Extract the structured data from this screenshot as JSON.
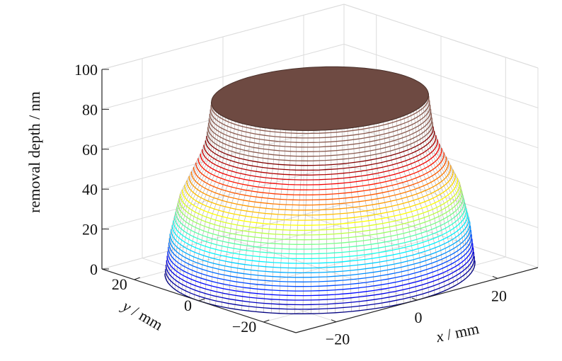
{
  "chart_data": {
    "type": "surface",
    "title": "",
    "xlabel": "x / mm",
    "ylabel": "y / mm",
    "zlabel": "removal depth / nm",
    "xlim": [
      -30,
      30
    ],
    "ylim": [
      -30,
      30
    ],
    "zlim": [
      0,
      100
    ],
    "x_ticks": [
      {
        "value": -20,
        "label": "−20"
      },
      {
        "value": 0,
        "label": "0"
      },
      {
        "value": 20,
        "label": "20"
      }
    ],
    "y_ticks": [
      {
        "value": 20,
        "label": "20"
      },
      {
        "value": 0,
        "label": "0"
      },
      {
        "value": -20,
        "label": "−20"
      }
    ],
    "z_ticks": [
      {
        "value": 0,
        "label": "0"
      },
      {
        "value": 20,
        "label": "20"
      },
      {
        "value": 40,
        "label": "40"
      },
      {
        "value": 60,
        "label": "60"
      },
      {
        "value": 80,
        "label": "80"
      },
      {
        "value": 100,
        "label": "100"
      }
    ],
    "grid": true,
    "colormap": "jet",
    "plateau_color": "#6e4a42",
    "surface": {
      "description_points": [
        {
          "depth": 0,
          "radius": 30
        },
        {
          "depth": 20,
          "radius": 29
        },
        {
          "depth": 40,
          "radius": 27
        },
        {
          "depth": 60,
          "radius": 23
        },
        {
          "depth": 67,
          "radius": 22
        },
        {
          "depth": 85,
          "radius": 21
        }
      ],
      "plateau_depth": 85
    }
  }
}
